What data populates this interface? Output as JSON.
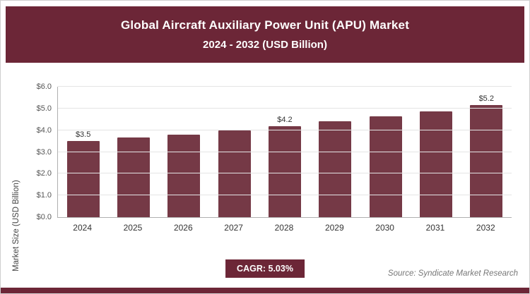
{
  "colors": {
    "brand": "#6C2637",
    "bar": "#753946"
  },
  "header": {
    "title_line1": "Global Aircraft Auxiliary Power Unit (APU) Market",
    "title_line2": "2024 - 2032 (USD Billion)"
  },
  "chart_data": {
    "type": "bar",
    "title": "Global Aircraft Auxiliary Power Unit (APU) Market 2024 - 2032 (USD Billion)",
    "categories": [
      "2024",
      "2025",
      "2026",
      "2027",
      "2028",
      "2029",
      "2030",
      "2031",
      "2032"
    ],
    "values": [
      3.5,
      3.65,
      3.8,
      4.0,
      4.2,
      4.4,
      4.65,
      4.85,
      5.15
    ],
    "bar_labels": [
      "$3.5",
      "",
      "",
      "",
      "$4.2",
      "",
      "",
      "",
      "$5.2"
    ],
    "ylabel": "Market Size (USD Billion)",
    "xlabel": "",
    "ylim": [
      0,
      6
    ],
    "ytick_labels": [
      "$0.0",
      "$1.0",
      "$2.0",
      "$3.0",
      "$4.0",
      "$5.0",
      "$6.0"
    ],
    "grid": true,
    "legend": false
  },
  "footer": {
    "cagr_label": "CAGR: 5.03%",
    "source": "Source: Syndicate Market Research"
  }
}
